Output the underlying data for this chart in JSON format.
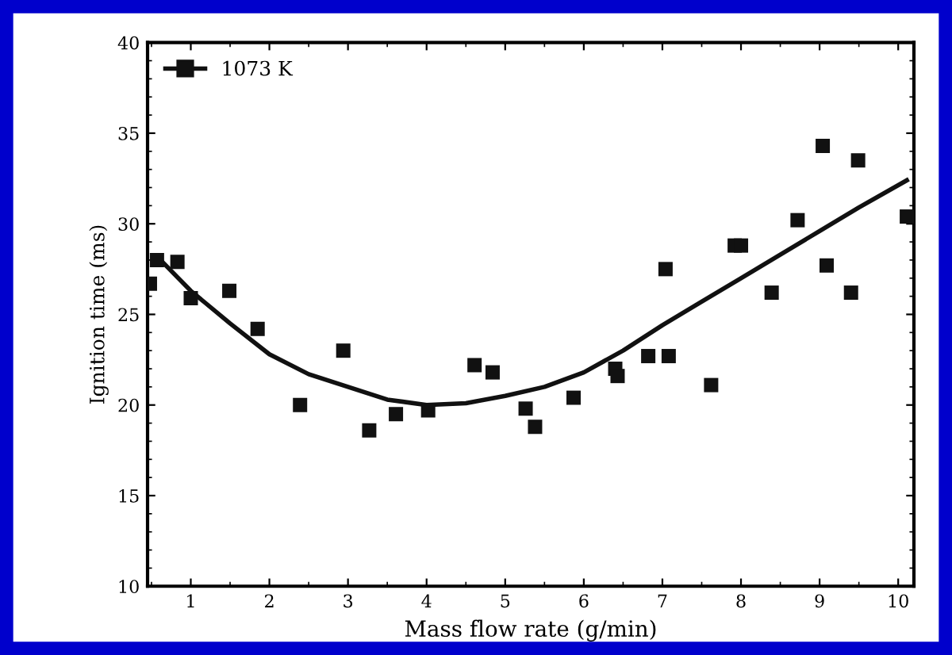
{
  "chart_data": {
    "type": "scatter",
    "xlabel": "Mass flow rate (g/min)",
    "ylabel": "Ignition time (ms)",
    "xlim": [
      0.45,
      10.2
    ],
    "ylim": [
      10,
      40
    ],
    "xticks": [
      1,
      2,
      3,
      4,
      5,
      6,
      7,
      8,
      9,
      10
    ],
    "yticks": [
      10,
      15,
      20,
      25,
      30,
      35,
      40
    ],
    "grid": false,
    "legend": "top left",
    "series": [
      {
        "name": "1073 K",
        "marker": "square",
        "color": "#111111",
        "x": [
          0.48,
          0.57,
          0.83,
          1.0,
          1.49,
          1.85,
          2.39,
          2.94,
          3.27,
          3.61,
          4.02,
          4.61,
          4.84,
          5.26,
          5.38,
          5.87,
          6.4,
          6.43,
          6.82,
          7.08,
          7.04,
          7.62,
          7.92,
          8.0,
          8.39,
          8.72,
          9.04,
          9.09,
          9.4,
          9.49,
          10.11
        ],
        "values": [
          26.7,
          28.0,
          27.9,
          25.9,
          26.3,
          24.2,
          20.0,
          23.0,
          18.6,
          19.5,
          19.7,
          22.2,
          21.8,
          19.8,
          18.8,
          20.4,
          22.0,
          21.6,
          22.7,
          22.7,
          27.5,
          21.1,
          28.8,
          28.8,
          26.2,
          30.2,
          34.3,
          27.7,
          26.2,
          33.5,
          30.4
        ]
      },
      {
        "type": "line",
        "color": "#111111",
        "line_style": "solid",
        "x": [
          0.57,
          1,
          1.5,
          2,
          2.5,
          3,
          3.5,
          4,
          4.5,
          5,
          5.5,
          6,
          6.5,
          7,
          7.5,
          8,
          8.5,
          9,
          9.5,
          10.11
        ],
        "values": [
          28.2,
          26.3,
          24.5,
          22.8,
          21.7,
          21.0,
          20.3,
          20.0,
          20.1,
          20.5,
          21.0,
          21.8,
          23.0,
          24.4,
          25.7,
          27.0,
          28.3,
          29.6,
          30.9,
          32.4
        ]
      }
    ]
  }
}
